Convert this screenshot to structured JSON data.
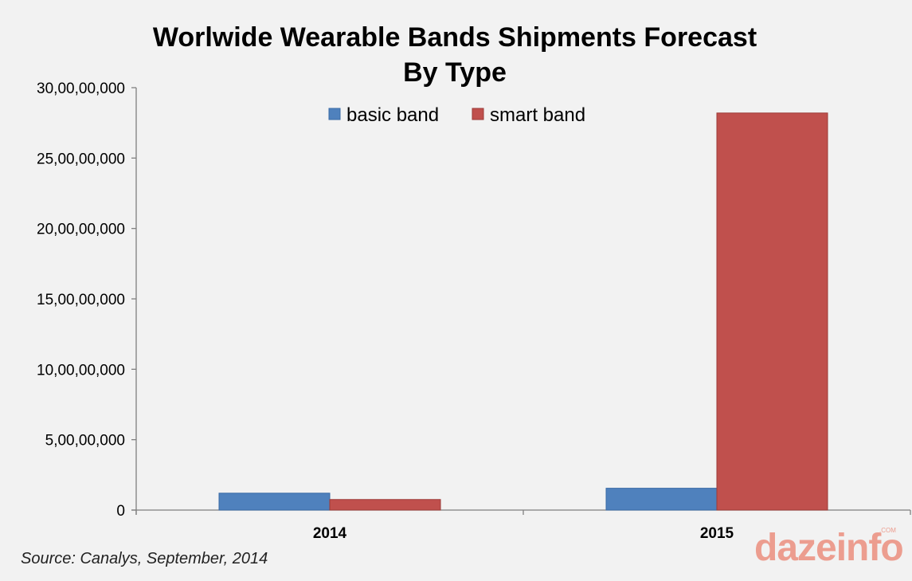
{
  "chart_data": {
    "type": "bar",
    "title": "Worlwide Wearable Bands Shipments Forecast",
    "subtitle": "By Type",
    "categories": [
      "2014",
      "2015"
    ],
    "series": [
      {
        "name": "basic band",
        "color": "#4f81bd",
        "values": [
          12000000,
          15500000
        ]
      },
      {
        "name": "smart band",
        "color": "#c0504d",
        "values": [
          7500000,
          282000000
        ]
      }
    ],
    "ylim": [
      0,
      300000000
    ],
    "yticks": [
      0,
      50000000,
      100000000,
      150000000,
      200000000,
      250000000,
      300000000
    ],
    "ytick_labels": [
      "0",
      "5,00,00,000",
      "10,00,00,000",
      "15,00,00,000",
      "20,00,00,000",
      "25,00,00,000",
      "30,00,00,000"
    ],
    "xlabel": "",
    "ylabel": "",
    "legend_position": "top-center",
    "grid": false
  },
  "source_note": "Source: Canalys, September, 2014",
  "watermark": {
    "text": "dazeinfo",
    "suffix": ".COM"
  }
}
